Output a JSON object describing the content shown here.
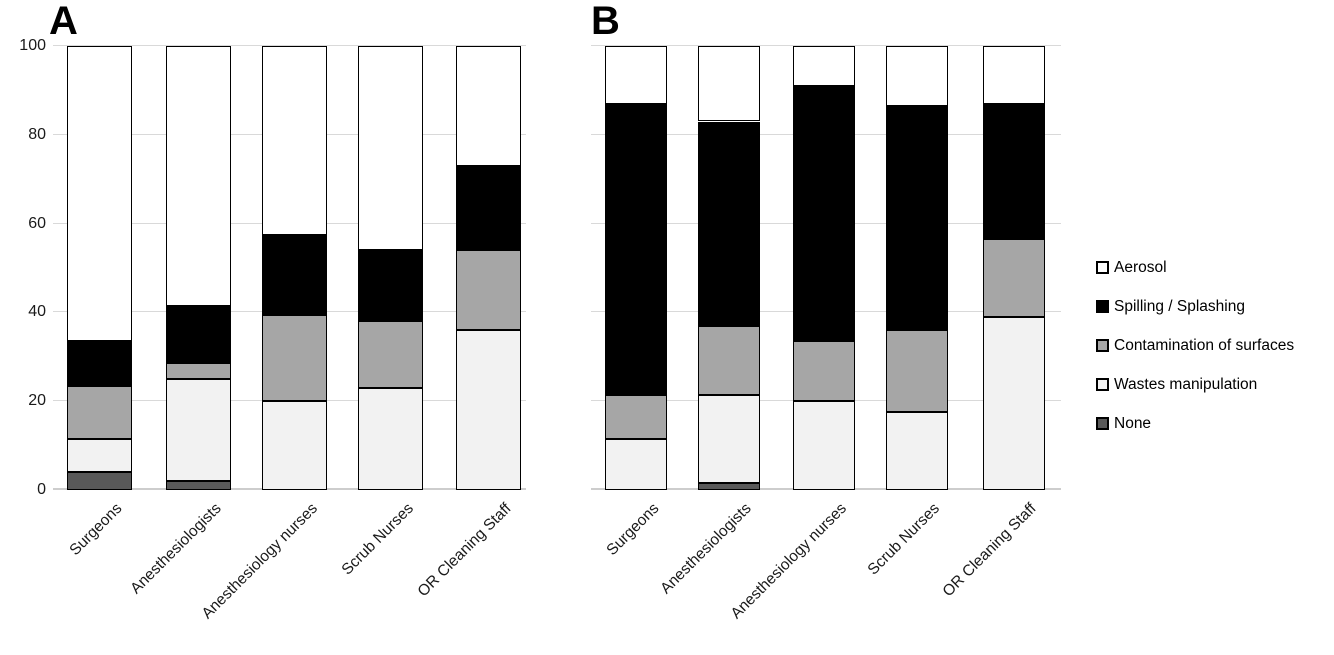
{
  "chart_data": [
    {
      "type": "bar",
      "stacked": true,
      "panel_label": "A",
      "categories": [
        "Surgeons",
        "Anesthesiologists",
        "Anesthesiology nurses",
        "Scrub Nurses",
        "OR Cleaning Staff"
      ],
      "series": [
        {
          "name": "None",
          "color": "#595959",
          "values": [
            4,
            2,
            0,
            0,
            0
          ]
        },
        {
          "name": "Wastes manipulation",
          "color": "#f2f2f2",
          "values": [
            7.5,
            23,
            20,
            23,
            36
          ]
        },
        {
          "name": "Contamination of surfaces",
          "color": "#a6a6a6",
          "values": [
            12,
            3.5,
            19.5,
            15,
            18
          ]
        },
        {
          "name": "Spilling / Splashing",
          "color": "#000000",
          "values": [
            10,
            13,
            18,
            16,
            19
          ]
        },
        {
          "name": "Aerosol",
          "color": "#ffffff",
          "values": [
            66.5,
            58.5,
            42.5,
            46,
            27
          ]
        }
      ],
      "xlabel": "",
      "ylabel": "",
      "ylim": [
        0,
        100
      ],
      "yticks": [
        "0",
        "20",
        "40",
        "60",
        "80",
        "100"
      ],
      "show_ytick_labels": true,
      "grid": true
    },
    {
      "type": "bar",
      "stacked": true,
      "panel_label": "B",
      "categories": [
        "Surgeons",
        "Anesthesiologists",
        "Anesthesiology nurses",
        "Scrub Nurses",
        "OR Cleaning Staff"
      ],
      "series": [
        {
          "name": "None",
          "color": "#595959",
          "values": [
            0,
            1.5,
            0,
            0,
            0
          ]
        },
        {
          "name": "Wastes manipulation",
          "color": "#f2f2f2",
          "values": [
            11.5,
            20,
            20,
            17.5,
            39
          ]
        },
        {
          "name": "Contamination of surfaces",
          "color": "#a6a6a6",
          "values": [
            10,
            15.5,
            13.5,
            18.5,
            17.5
          ]
        },
        {
          "name": "Spilling / Splashing",
          "color": "#000000",
          "values": [
            65.5,
            46,
            57.5,
            50.5,
            30.5
          ]
        },
        {
          "name": "Aerosol",
          "color": "#ffffff",
          "values": [
            13,
            17,
            9,
            13.5,
            13
          ]
        }
      ],
      "xlabel": "",
      "ylabel": "",
      "ylim": [
        0,
        100
      ],
      "yticks": [
        "0",
        "20",
        "40",
        "60",
        "80",
        "100"
      ],
      "show_ytick_labels": false,
      "grid": true
    }
  ],
  "legend": {
    "position": "right",
    "items": [
      {
        "label": "Aerosol",
        "color": "#ffffff"
      },
      {
        "label": "Spilling / Splashing",
        "color": "#000000"
      },
      {
        "label": "Contamination of surfaces",
        "color": "#a6a6a6"
      },
      {
        "label": "Wastes manipulation",
        "color": "#f2f2f2"
      },
      {
        "label": "None",
        "color": "#595959"
      }
    ]
  },
  "colors": {
    "background": "#ffffff",
    "gridline": "#d9d9d9",
    "segment_border": "#000000",
    "text": "#1a1a1a"
  }
}
